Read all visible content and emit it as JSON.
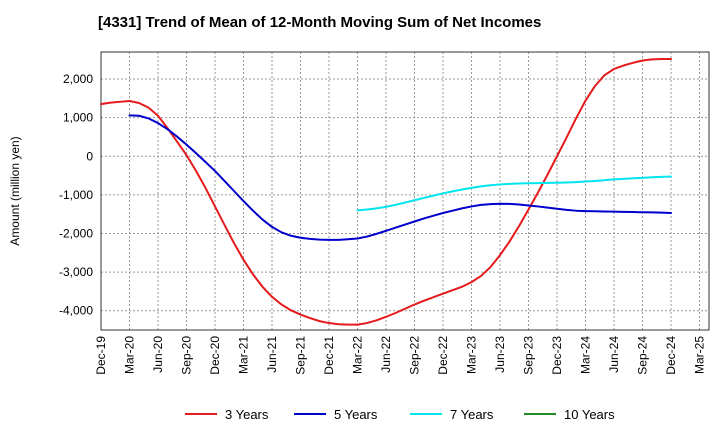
{
  "chart_data": {
    "type": "line",
    "title": "[4331]  Trend of Mean of 12-Month Moving Sum of Net Incomes",
    "ylabel": "Amount (million yen)",
    "xlabel": "",
    "ylim": [
      -4500,
      2700
    ],
    "y_ticks": [
      2000,
      1000,
      0,
      -1000,
      -2000,
      -3000,
      -4000
    ],
    "y_tick_labels": [
      "2,000",
      "1,000",
      "0",
      "-1,000",
      "-2,000",
      "-3,000",
      "-4,000"
    ],
    "x_ticks": [
      "Dec-19",
      "Mar-20",
      "Jun-20",
      "Sep-20",
      "Dec-20",
      "Mar-21",
      "Jun-21",
      "Sep-21",
      "Dec-21",
      "Mar-22",
      "Jun-22",
      "Sep-22",
      "Dec-22",
      "Mar-23",
      "Jun-23",
      "Sep-23",
      "Dec-23",
      "Mar-24",
      "Jun-24",
      "Sep-24",
      "Dec-24",
      "Mar-25"
    ],
    "grid": true,
    "legend_position": "bottom",
    "series": [
      {
        "name": "3 Years",
        "color": "#e41a1c",
        "x": [
          "Dec-19",
          "Jan-20",
          "Feb-20",
          "Mar-20",
          "Apr-20",
          "May-20",
          "Jun-20",
          "Jul-20",
          "Aug-20",
          "Sep-20",
          "Oct-20",
          "Nov-20",
          "Dec-20",
          "Jan-21",
          "Feb-21",
          "Mar-21",
          "Apr-21",
          "May-21",
          "Jun-21",
          "Jul-21",
          "Aug-21",
          "Sep-21",
          "Oct-21",
          "Nov-21",
          "Dec-21",
          "Jan-22",
          "Feb-22",
          "Mar-22",
          "Apr-22",
          "May-22",
          "Jun-22",
          "Jul-22",
          "Aug-22",
          "Sep-22",
          "Oct-22",
          "Nov-22",
          "Dec-22",
          "Jan-23",
          "Feb-23",
          "Mar-23",
          "Apr-23",
          "May-23",
          "Jun-23",
          "Jul-23",
          "Aug-23",
          "Sep-23",
          "Oct-23",
          "Nov-23",
          "Dec-23",
          "Jan-24",
          "Feb-24",
          "Mar-24",
          "Apr-24",
          "May-24",
          "Jun-24",
          "Jul-24",
          "Aug-24",
          "Sep-24",
          "Oct-24",
          "Nov-24",
          "Dec-24"
        ],
        "values": [
          1350,
          1390,
          1410,
          1430,
          1380,
          1260,
          1050,
          730,
          380,
          30,
          -380,
          -820,
          -1300,
          -1780,
          -2250,
          -2680,
          -3060,
          -3380,
          -3640,
          -3840,
          -3990,
          -4100,
          -4190,
          -4270,
          -4320,
          -4350,
          -4360,
          -4360,
          -4320,
          -4250,
          -4160,
          -4060,
          -3950,
          -3840,
          -3740,
          -3650,
          -3560,
          -3470,
          -3380,
          -3260,
          -3100,
          -2870,
          -2560,
          -2210,
          -1810,
          -1380,
          -940,
          -480,
          0,
          480,
          980,
          1440,
          1820,
          2100,
          2260,
          2350,
          2420,
          2480,
          2510,
          2520,
          2520
        ]
      },
      {
        "name": "5 Years",
        "color": "#0000cd",
        "x": [
          "Mar-20",
          "Apr-20",
          "May-20",
          "Jun-20",
          "Jul-20",
          "Aug-20",
          "Sep-20",
          "Oct-20",
          "Nov-20",
          "Dec-20",
          "Jan-21",
          "Feb-21",
          "Mar-21",
          "Apr-21",
          "May-21",
          "Jun-21",
          "Jul-21",
          "Aug-21",
          "Sep-21",
          "Oct-21",
          "Nov-21",
          "Dec-21",
          "Jan-22",
          "Feb-22",
          "Mar-22",
          "Apr-22",
          "May-22",
          "Jun-22",
          "Jul-22",
          "Aug-22",
          "Sep-22",
          "Oct-22",
          "Nov-22",
          "Dec-22",
          "Jan-23",
          "Feb-23",
          "Mar-23",
          "Apr-23",
          "May-23",
          "Jun-23",
          "Jul-23",
          "Aug-23",
          "Sep-23",
          "Oct-23",
          "Nov-23",
          "Dec-23",
          "Jan-24",
          "Feb-24",
          "Mar-24",
          "Apr-24",
          "May-24",
          "Jun-24",
          "Jul-24",
          "Aug-24",
          "Sep-24",
          "Oct-24",
          "Nov-24",
          "Dec-24"
        ],
        "values": [
          1060,
          1050,
          980,
          860,
          700,
          510,
          300,
          80,
          -150,
          -380,
          -640,
          -900,
          -1160,
          -1410,
          -1640,
          -1830,
          -1970,
          -2060,
          -2110,
          -2140,
          -2160,
          -2165,
          -2165,
          -2150,
          -2130,
          -2080,
          -2010,
          -1930,
          -1850,
          -1770,
          -1690,
          -1610,
          -1540,
          -1470,
          -1410,
          -1350,
          -1300,
          -1260,
          -1240,
          -1230,
          -1235,
          -1250,
          -1275,
          -1300,
          -1330,
          -1360,
          -1390,
          -1410,
          -1420,
          -1425,
          -1430,
          -1435,
          -1440,
          -1445,
          -1450,
          -1455,
          -1460,
          -1470
        ]
      },
      {
        "name": "7 Years",
        "color": "#00e5ee",
        "x": [
          "Mar-22",
          "Apr-22",
          "May-22",
          "Jun-22",
          "Jul-22",
          "Aug-22",
          "Sep-22",
          "Oct-22",
          "Nov-22",
          "Dec-22",
          "Jan-23",
          "Feb-23",
          "Mar-23",
          "Apr-23",
          "May-23",
          "Jun-23",
          "Jul-23",
          "Aug-23",
          "Sep-23",
          "Oct-23",
          "Nov-23",
          "Dec-23",
          "Jan-24",
          "Feb-24",
          "Mar-24",
          "Apr-24",
          "May-24",
          "Jun-24",
          "Jul-24",
          "Aug-24",
          "Sep-24",
          "Oct-24",
          "Nov-24",
          "Dec-24"
        ],
        "values": [
          -1400,
          -1380,
          -1350,
          -1310,
          -1260,
          -1200,
          -1140,
          -1080,
          -1020,
          -960,
          -910,
          -860,
          -820,
          -780,
          -750,
          -730,
          -715,
          -705,
          -700,
          -695,
          -690,
          -685,
          -680,
          -670,
          -655,
          -640,
          -620,
          -600,
          -585,
          -570,
          -560,
          -545,
          -535,
          -525
        ]
      },
      {
        "name": "10 Years",
        "color": "#228b22",
        "x": [],
        "values": []
      }
    ]
  }
}
